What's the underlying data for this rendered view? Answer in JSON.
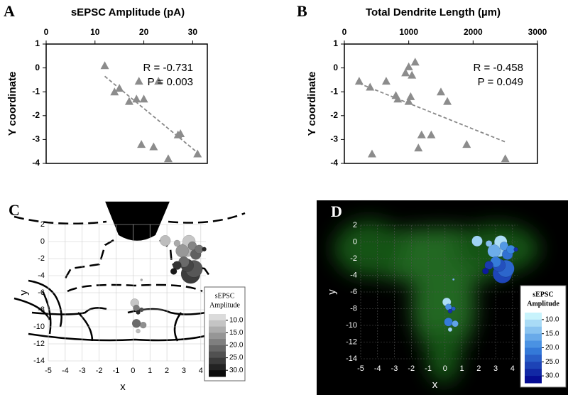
{
  "chart_data": [
    {
      "type": "scatter",
      "panel_label": "A",
      "title": "sEPSC Amplitude  (pA)",
      "y_label": "Y coordinate",
      "x": [
        12,
        14,
        15,
        17,
        18.5,
        19,
        20,
        19.5,
        22,
        23,
        25,
        27,
        27.5,
        31
      ],
      "values": [
        0.1,
        -1.0,
        -0.85,
        -1.4,
        -1.3,
        -0.55,
        -1.3,
        -3.2,
        -3.3,
        -0.55,
        -3.8,
        -2.8,
        -2.75,
        -3.6
      ],
      "color": "#8c8c8c",
      "xlim": [
        0,
        33
      ],
      "xticks": [
        0,
        10,
        20,
        30
      ],
      "ylim": [
        -4,
        1
      ],
      "yticks": [
        -4,
        -3,
        -2,
        -1,
        0,
        1
      ],
      "trendline": {
        "x": [
          12,
          31
        ],
        "values": [
          -0.35,
          -3.55
        ]
      },
      "annotations": [
        "R = -0.731",
        "P = 0.003"
      ]
    },
    {
      "type": "scatter",
      "panel_label": "B",
      "title": "Total Dendrite Length (µm)",
      "y_label": "Y coordinate",
      "x": [
        230,
        400,
        430,
        650,
        800,
        830,
        950,
        1000,
        1000,
        1030,
        1050,
        1100,
        1150,
        1200,
        1350,
        1500,
        1600,
        1900,
        2500
      ],
      "values": [
        -0.55,
        -0.8,
        -3.6,
        -0.55,
        -1.15,
        -1.3,
        -0.2,
        0.05,
        -1.4,
        -1.2,
        -0.3,
        0.25,
        -3.35,
        -2.8,
        -2.8,
        -1.0,
        -1.4,
        -3.2,
        -3.8
      ],
      "color": "#8c8c8c",
      "xlim": [
        0,
        3000
      ],
      "xticks": [
        0,
        1000,
        2000,
        3000
      ],
      "ylim": [
        -4,
        1
      ],
      "yticks": [
        -4,
        -3,
        -2,
        -1,
        0,
        1
      ],
      "trendline": {
        "x": [
          230,
          2500
        ],
        "values": [
          -0.65,
          -3.1
        ]
      },
      "annotations": [
        "R = -0.458",
        "P = 0.049"
      ]
    },
    {
      "type": "bubble",
      "panel_label": "C",
      "x_label": "x",
      "y_label": "y",
      "x": [
        1.9,
        2.6,
        3.3,
        3.2,
        2.9,
        3.5,
        3.9,
        4.2,
        3.7,
        3.0,
        3.2,
        3.6,
        2.6,
        2.4,
        3.4,
        0.1,
        0.2,
        0.5,
        0.3,
        0.2,
        0.6,
        0.3,
        0.5
      ],
      "values": [
        0.1,
        -0.2,
        0,
        -0.9,
        -1.1,
        -0.5,
        -0.9,
        -0.9,
        -1.5,
        -2.4,
        -2.8,
        -3.2,
        -2.8,
        -3.5,
        -3.8,
        -7.2,
        -7.8,
        -8.0,
        -8.3,
        -9.6,
        -9.8,
        -10.5,
        -4.5
      ],
      "sizes": [
        5,
        3,
        6,
        7,
        6,
        4,
        4,
        2,
        5,
        5,
        6,
        8,
        4,
        3,
        9,
        4,
        3,
        2,
        2,
        4,
        3,
        2,
        1
      ],
      "amplitudes": [
        12,
        14,
        11,
        13,
        16,
        18,
        20,
        28,
        22,
        21,
        25,
        23,
        27,
        30,
        26,
        11,
        19,
        24,
        28,
        21,
        17,
        12,
        15
      ],
      "xlim": [
        -5,
        4.3
      ],
      "xticks": [
        -5,
        -4,
        -3,
        -2,
        -1,
        0,
        1,
        2,
        3,
        4
      ],
      "ylim": [
        -14,
        2
      ],
      "yticks": [
        -14,
        -12,
        -10,
        -8,
        -6,
        -4,
        -2,
        0,
        2
      ],
      "grid": true,
      "colorbar": {
        "title": [
          "sEPSC",
          "Amplitude"
        ],
        "lim": [
          7.5,
          32.5
        ],
        "colors": [
          "#e6e6e6",
          "#000000"
        ],
        "ticks": [
          {
            "value": 10,
            "label": "10.0"
          },
          {
            "value": 15,
            "label": "15.0"
          },
          {
            "value": 20,
            "label": "20.0"
          },
          {
            "value": 25,
            "label": "25.0"
          },
          {
            "value": 30,
            "label": "30.0"
          }
        ]
      }
    },
    {
      "type": "bubble",
      "panel_label": "D",
      "x_label": "x",
      "y_label": "y",
      "x": [
        1.9,
        2.6,
        3.3,
        3.2,
        2.9,
        3.5,
        3.9,
        4.2,
        3.7,
        3.0,
        3.2,
        3.6,
        2.6,
        2.4,
        3.4,
        0.1,
        0.2,
        0.5,
        0.3,
        0.2,
        0.6,
        0.3,
        0.5
      ],
      "values": [
        0.1,
        -0.2,
        0,
        -0.9,
        -1.1,
        -0.5,
        -0.9,
        -0.9,
        -1.5,
        -2.4,
        -2.8,
        -3.2,
        -2.8,
        -3.5,
        -3.8,
        -7.2,
        -7.8,
        -8.0,
        -8.3,
        -9.6,
        -9.8,
        -10.5,
        -4.5
      ],
      "sizes": [
        5,
        3,
        6,
        7,
        6,
        4,
        4,
        2,
        5,
        5,
        6,
        8,
        4,
        3,
        9,
        4,
        3,
        2,
        2,
        4,
        3,
        2,
        1
      ],
      "amplitudes": [
        12,
        14,
        11,
        13,
        16,
        18,
        20,
        28,
        22,
        21,
        25,
        23,
        27,
        30,
        26,
        11,
        19,
        24,
        28,
        21,
        17,
        12,
        15
      ],
      "xlim": [
        -5,
        4.3
      ],
      "xticks": [
        -5,
        -4,
        -3,
        -2,
        -1,
        0,
        1,
        2,
        3,
        4
      ],
      "ylim": [
        -14,
        2
      ],
      "yticks": [
        -14,
        -12,
        -10,
        -8,
        -6,
        -4,
        -2,
        0,
        2
      ],
      "grid": true,
      "colorbar": {
        "title": [
          "sEPSC",
          "Amplitude"
        ],
        "lim": [
          7.5,
          32.5
        ],
        "colors": [
          "#d8ffff",
          "#3a86e0",
          "#00008b"
        ],
        "ticks": [
          {
            "value": 10,
            "label": "10.0"
          },
          {
            "value": 15,
            "label": "15.0"
          },
          {
            "value": 20,
            "label": "20.0"
          },
          {
            "value": 25,
            "label": "25.0"
          },
          {
            "value": 30,
            "label": "30.0"
          }
        ]
      }
    }
  ]
}
